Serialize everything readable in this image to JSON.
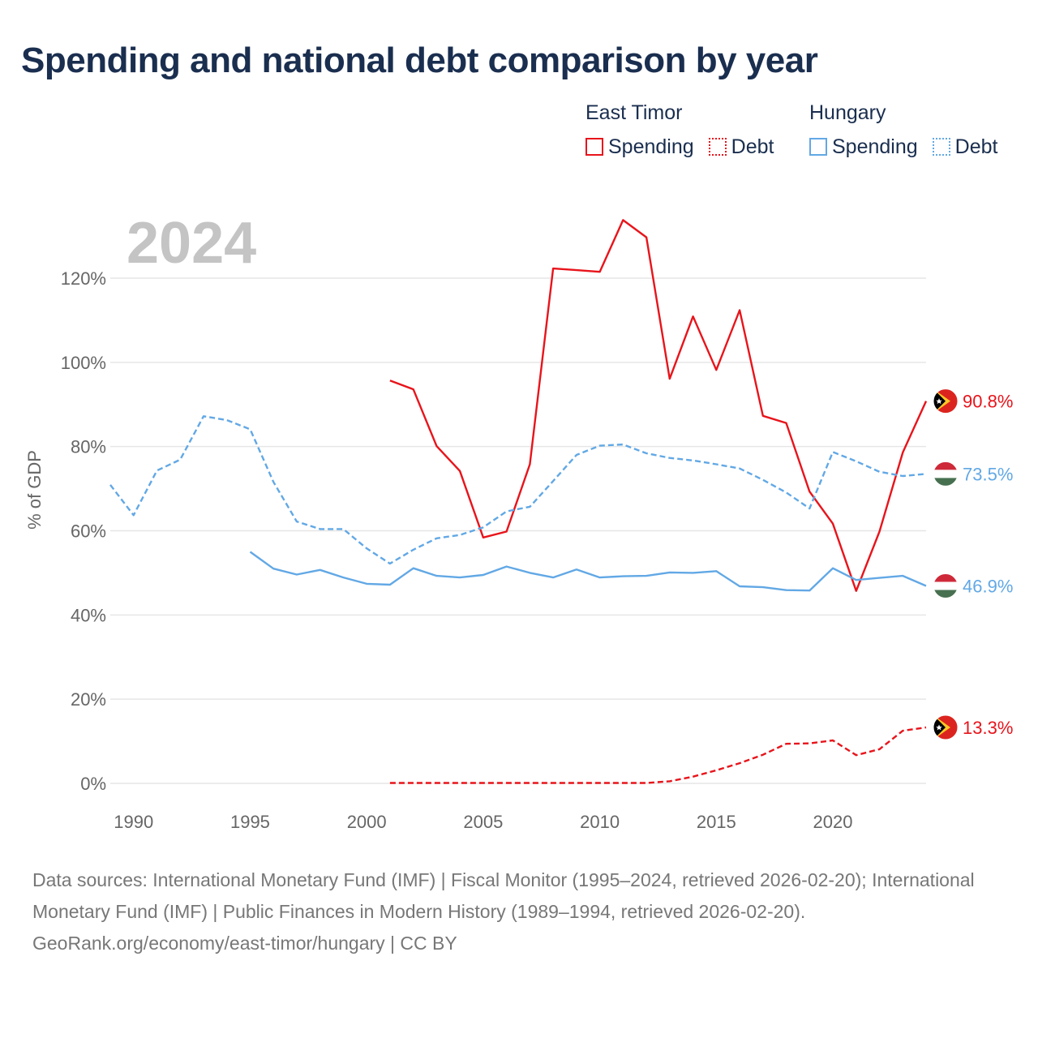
{
  "title": "Spending and national debt comparison by year",
  "current_year": "2024",
  "legend": {
    "groups": [
      {
        "name": "East Timor",
        "color": "#e8141b",
        "items": [
          "Spending",
          "Debt"
        ]
      },
      {
        "name": "Hungary",
        "color": "#62a8e5",
        "items": [
          "Spending",
          "Debt"
        ]
      }
    ]
  },
  "chart_data": {
    "type": "line",
    "ylabel": "% of GDP",
    "xlim": [
      1989,
      2024
    ],
    "ylim": [
      0,
      120
    ],
    "x_ticks": [
      1990,
      1995,
      2000,
      2005,
      2010,
      2015,
      2020
    ],
    "y_ticks": [
      {
        "value": 0,
        "label": "0%"
      },
      {
        "value": 20,
        "label": "20%"
      },
      {
        "value": 40,
        "label": "40%"
      },
      {
        "value": 60,
        "label": "60%"
      },
      {
        "value": 80,
        "label": "80%"
      },
      {
        "value": 100,
        "label": "100%"
      },
      {
        "value": 120,
        "label": "120%"
      }
    ],
    "series": [
      {
        "name": "East Timor Spending",
        "country": "East Timor",
        "metric": "Spending",
        "color": "#e8141b",
        "dashed": false,
        "end_label": "90.8%",
        "flag": "east-timor",
        "points": [
          [
            2001,
            95.7
          ],
          [
            2002,
            93.6
          ],
          [
            2003,
            80.1
          ],
          [
            2004,
            74.2
          ],
          [
            2005,
            58.4
          ],
          [
            2006,
            59.8
          ],
          [
            2007,
            75.8
          ],
          [
            2008,
            122.3
          ],
          [
            2009,
            121.9
          ],
          [
            2010,
            121.5
          ],
          [
            2011,
            133.8
          ],
          [
            2012,
            129.7
          ],
          [
            2013,
            96.1
          ],
          [
            2014,
            110.9
          ],
          [
            2015,
            98.2
          ],
          [
            2016,
            112.4
          ],
          [
            2017,
            87.3
          ],
          [
            2018,
            85.6
          ],
          [
            2019,
            69.3
          ],
          [
            2020,
            61.7
          ],
          [
            2021,
            45.7
          ],
          [
            2022,
            59.8
          ],
          [
            2023,
            78.6
          ],
          [
            2024,
            90.8
          ]
        ]
      },
      {
        "name": "East Timor Debt",
        "country": "East Timor",
        "metric": "Debt",
        "color": "#e8141b",
        "dashed": true,
        "end_label": "13.3%",
        "flag": "east-timor",
        "points": [
          [
            2001,
            0.1
          ],
          [
            2002,
            0.1
          ],
          [
            2003,
            0.1
          ],
          [
            2004,
            0.1
          ],
          [
            2005,
            0.1
          ],
          [
            2006,
            0.1
          ],
          [
            2007,
            0.1
          ],
          [
            2008,
            0.1
          ],
          [
            2009,
            0.1
          ],
          [
            2010,
            0.1
          ],
          [
            2011,
            0.1
          ],
          [
            2012,
            0.1
          ],
          [
            2013,
            0.5
          ],
          [
            2014,
            1.6
          ],
          [
            2015,
            3.1
          ],
          [
            2016,
            4.8
          ],
          [
            2017,
            6.8
          ],
          [
            2018,
            9.4
          ],
          [
            2019,
            9.5
          ],
          [
            2020,
            10.2
          ],
          [
            2021,
            6.7
          ],
          [
            2022,
            8.1
          ],
          [
            2023,
            12.5
          ],
          [
            2024,
            13.3
          ]
        ]
      },
      {
        "name": "Hungary Spending",
        "country": "Hungary",
        "metric": "Spending",
        "color": "#62a8e5",
        "dashed": false,
        "end_label": "46.9%",
        "flag": "hungary",
        "points": [
          [
            1995,
            55.0
          ],
          [
            1996,
            51.0
          ],
          [
            1997,
            49.6
          ],
          [
            1998,
            50.7
          ],
          [
            1999,
            48.9
          ],
          [
            2000,
            47.4
          ],
          [
            2001,
            47.2
          ],
          [
            2002,
            51.1
          ],
          [
            2003,
            49.3
          ],
          [
            2004,
            48.9
          ],
          [
            2005,
            49.5
          ],
          [
            2006,
            51.5
          ],
          [
            2007,
            50.0
          ],
          [
            2008,
            48.9
          ],
          [
            2009,
            50.8
          ],
          [
            2010,
            48.9
          ],
          [
            2011,
            49.2
          ],
          [
            2012,
            49.3
          ],
          [
            2013,
            50.1
          ],
          [
            2014,
            50.0
          ],
          [
            2015,
            50.4
          ],
          [
            2016,
            46.8
          ],
          [
            2017,
            46.6
          ],
          [
            2018,
            45.9
          ],
          [
            2019,
            45.8
          ],
          [
            2020,
            51.1
          ],
          [
            2021,
            48.3
          ],
          [
            2022,
            48.8
          ],
          [
            2023,
            49.3
          ],
          [
            2024,
            46.9
          ]
        ]
      },
      {
        "name": "Hungary Debt",
        "country": "Hungary",
        "metric": "Debt",
        "color": "#62a8e5",
        "dashed": true,
        "end_label": "73.5%",
        "flag": "hungary",
        "points": [
          [
            1989,
            70.9
          ],
          [
            1990,
            63.7
          ],
          [
            1991,
            74.3
          ],
          [
            1992,
            76.9
          ],
          [
            1993,
            87.2
          ],
          [
            1994,
            86.3
          ],
          [
            1995,
            84.1
          ],
          [
            1996,
            71.6
          ],
          [
            1997,
            62.2
          ],
          [
            1998,
            60.4
          ],
          [
            1999,
            60.4
          ],
          [
            2000,
            55.8
          ],
          [
            2001,
            52.2
          ],
          [
            2002,
            55.5
          ],
          [
            2003,
            58.2
          ],
          [
            2004,
            59.0
          ],
          [
            2005,
            60.8
          ],
          [
            2006,
            64.6
          ],
          [
            2007,
            65.7
          ],
          [
            2008,
            71.8
          ],
          [
            2009,
            78.0
          ],
          [
            2010,
            80.2
          ],
          [
            2011,
            80.5
          ],
          [
            2012,
            78.4
          ],
          [
            2013,
            77.3
          ],
          [
            2014,
            76.7
          ],
          [
            2015,
            75.8
          ],
          [
            2016,
            74.8
          ],
          [
            2017,
            72.1
          ],
          [
            2018,
            69.1
          ],
          [
            2019,
            65.3
          ],
          [
            2020,
            78.7
          ],
          [
            2021,
            76.5
          ],
          [
            2022,
            74.0
          ],
          [
            2023,
            73.0
          ],
          [
            2024,
            73.5
          ]
        ]
      }
    ]
  },
  "footer": {
    "sources": "Data sources: International Monetary Fund (IMF) | Fiscal Monitor (1995–2024, retrieved 2026-02-20); International Monetary Fund (IMF) | Public Finances in Modern History (1989–1994, retrieved 2026-02-20).",
    "credit": "GeoRank.org/economy/east-timor/hungary | CC BY"
  }
}
